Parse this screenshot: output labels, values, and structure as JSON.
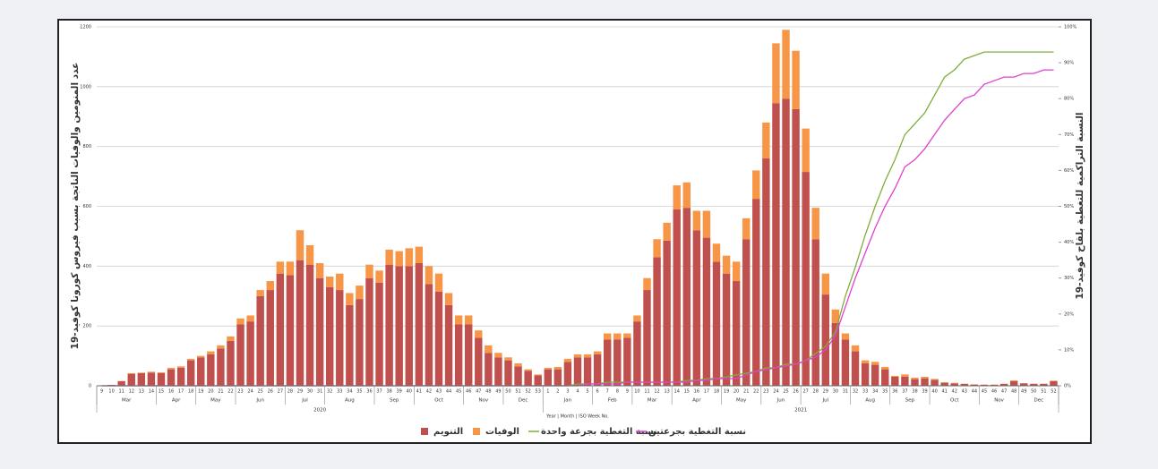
{
  "chart_data": {
    "type": "bar",
    "y_label": "عدد المنومين والوفيات الناتجة بسبب فيروس كورونا كوفيد-19",
    "y2_label": "النسبة التراكمية للتغطية بلقاح كوفيد-19",
    "x_label": "Year | Month | ISO Week No.",
    "stacked": true,
    "grid": true,
    "legend": "bottom",
    "categories": [
      "9",
      "10",
      "11",
      "12",
      "13",
      "14",
      "15",
      "16",
      "17",
      "18",
      "19",
      "20",
      "21",
      "22",
      "23",
      "24",
      "25",
      "26",
      "27",
      "28",
      "29",
      "30",
      "31",
      "32",
      "33",
      "34",
      "35",
      "36",
      "37",
      "38",
      "39",
      "40",
      "41",
      "42",
      "43",
      "44",
      "45",
      "46",
      "47",
      "48",
      "49",
      "50",
      "51",
      "52",
      "53",
      "1",
      "2",
      "3",
      "4",
      "5",
      "6",
      "7",
      "8",
      "9",
      "10",
      "11",
      "12",
      "13",
      "14",
      "15",
      "16",
      "17",
      "18",
      "19",
      "20",
      "21",
      "22",
      "23",
      "24",
      "25",
      "26",
      "27",
      "28",
      "29",
      "30",
      "31",
      "32",
      "33",
      "34",
      "35",
      "36",
      "37",
      "38",
      "39",
      "40",
      "41",
      "42",
      "43",
      "44",
      "45",
      "46",
      "47",
      "48",
      "49",
      "50",
      "51",
      "52"
    ],
    "months": [
      {
        "label": "Mar",
        "span": 6
      },
      {
        "label": "Apr",
        "span": 4
      },
      {
        "label": "May",
        "span": 4
      },
      {
        "label": "Jun",
        "span": 5
      },
      {
        "label": "Jul",
        "span": 4
      },
      {
        "label": "Aug",
        "span": 5
      },
      {
        "label": "Sep",
        "span": 4
      },
      {
        "label": "Oct",
        "span": 5
      },
      {
        "label": "Nov",
        "span": 4
      },
      {
        "label": "Dec",
        "span": 4
      },
      {
        "label": "Jan",
        "span": 5
      },
      {
        "label": "Feb",
        "span": 4
      },
      {
        "label": "Mar",
        "span": 4
      },
      {
        "label": "Apr",
        "span": 5
      },
      {
        "label": "May",
        "span": 4
      },
      {
        "label": "Jun",
        "span": 4
      },
      {
        "label": "Jul",
        "span": 5
      },
      {
        "label": "Aug",
        "span": 4
      },
      {
        "label": "Sep",
        "span": 4
      },
      {
        "label": "Oct",
        "span": 5
      },
      {
        "label": "Nov",
        "span": 4
      },
      {
        "label": "Dec",
        "span": 4
      }
    ],
    "years": [
      {
        "label": "2020",
        "span": 45
      },
      {
        "label": "2021",
        "span": 52
      }
    ],
    "ylim": [
      0,
      1200
    ],
    "yticks": [
      0,
      200,
      400,
      600,
      800,
      1000,
      1200
    ],
    "y2lim": [
      0,
      100
    ],
    "y2ticks": [
      {
        "value": 0,
        "label": "0%"
      },
      {
        "value": 10,
        "label": "10%"
      },
      {
        "value": 20,
        "label": "20%"
      },
      {
        "value": 30,
        "label": "30%"
      },
      {
        "value": 40,
        "label": "40%"
      },
      {
        "value": 50,
        "label": "50%"
      },
      {
        "value": 60,
        "label": "60%"
      },
      {
        "value": 70,
        "label": "70%"
      },
      {
        "value": 80,
        "label": "80%"
      },
      {
        "value": 90,
        "label": "90%"
      },
      {
        "value": 100,
        "label": "100%"
      }
    ],
    "series": [
      {
        "name": "التنويم",
        "color": "#c0504d",
        "values": [
          1,
          3,
          15,
          40,
          42,
          44,
          42,
          55,
          60,
          85,
          95,
          105,
          125,
          150,
          205,
          215,
          300,
          320,
          375,
          370,
          420,
          405,
          360,
          330,
          320,
          270,
          290,
          360,
          345,
          405,
          400,
          400,
          410,
          340,
          315,
          270,
          205,
          205,
          160,
          110,
          95,
          85,
          65,
          50,
          35,
          55,
          55,
          80,
          95,
          95,
          105,
          155,
          155,
          160,
          215,
          320,
          430,
          485,
          590,
          595,
          520,
          495,
          415,
          375,
          350,
          490,
          625,
          760,
          945,
          960,
          925,
          715,
          490,
          305,
          210,
          155,
          115,
          75,
          70,
          55,
          30,
          30,
          22,
          25,
          20,
          10,
          8,
          6,
          4,
          3,
          3,
          6,
          15,
          8,
          6,
          6,
          15
        ]
      },
      {
        "name": "الوفيات",
        "color": "#f79646",
        "values": [
          0,
          0,
          1,
          2,
          2,
          3,
          3,
          5,
          5,
          5,
          5,
          10,
          10,
          15,
          20,
          20,
          20,
          30,
          40,
          45,
          100,
          65,
          50,
          35,
          55,
          40,
          45,
          45,
          40,
          50,
          50,
          60,
          55,
          60,
          60,
          40,
          30,
          30,
          25,
          25,
          15,
          10,
          10,
          5,
          3,
          5,
          8,
          10,
          10,
          10,
          10,
          20,
          20,
          15,
          20,
          40,
          60,
          60,
          80,
          85,
          65,
          90,
          60,
          60,
          65,
          70,
          95,
          120,
          200,
          230,
          195,
          145,
          105,
          70,
          45,
          20,
          20,
          10,
          10,
          8,
          3,
          8,
          5,
          5,
          3,
          2,
          2,
          1,
          1,
          1,
          1,
          1,
          3,
          1,
          1,
          1,
          2
        ]
      },
      {
        "name": "نسبة التغطية بجرعة واحدة",
        "color": "#7fad3a",
        "type": "line",
        "axis": "y2",
        "values": [
          0,
          0,
          0,
          0,
          0,
          0,
          0,
          0,
          0,
          0,
          0,
          0,
          0,
          0,
          0,
          0,
          0,
          0,
          0,
          0,
          0,
          0,
          0,
          0,
          0,
          0,
          0,
          0,
          0,
          0,
          0,
          0,
          0,
          0,
          0,
          0,
          0,
          0,
          0,
          0,
          0,
          0,
          0,
          0,
          0,
          0,
          0,
          0,
          0.5,
          0.5,
          0.5,
          1,
          1,
          1,
          1,
          1,
          1,
          1,
          1,
          1.5,
          1.5,
          2,
          2,
          2.5,
          3,
          3.5,
          4,
          5,
          5,
          6,
          6,
          7,
          9,
          11,
          15,
          25,
          33,
          42,
          50,
          57,
          63,
          70,
          73,
          76,
          81,
          86,
          88,
          91,
          92,
          93,
          93,
          93,
          93,
          93,
          93,
          93,
          93
        ]
      },
      {
        "name": "نسبة التغطية بجرعتين",
        "color": "#e040d0",
        "type": "line",
        "axis": "y2",
        "values": [
          0,
          0,
          0,
          0,
          0,
          0,
          0,
          0,
          0,
          0,
          0,
          0,
          0,
          0,
          0,
          0,
          0,
          0,
          0,
          0,
          0,
          0,
          0,
          0,
          0,
          0,
          0,
          0,
          0,
          0,
          0,
          0,
          0,
          0,
          0,
          0,
          0,
          0,
          0,
          0,
          0,
          0,
          0,
          0,
          0,
          0,
          0,
          0,
          0,
          0.5,
          0.5,
          0.5,
          0.5,
          1,
          1,
          1,
          1,
          1,
          1,
          1,
          1.5,
          1.5,
          2,
          2,
          2,
          3,
          4,
          4.5,
          5,
          5.5,
          6,
          7,
          8,
          10,
          14,
          22,
          30,
          37,
          44,
          50,
          55,
          61,
          63,
          66,
          70,
          74,
          77,
          80,
          81,
          84,
          85,
          86,
          86,
          87,
          87,
          88,
          88
        ]
      }
    ]
  }
}
